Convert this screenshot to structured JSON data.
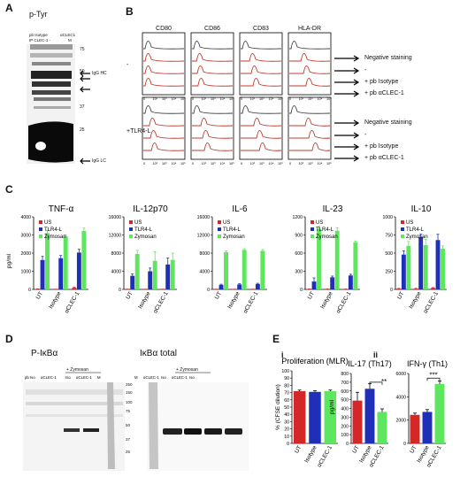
{
  "panelA": {
    "label": "A",
    "title": "p-Tyr",
    "lanes": [
      "pb Isotype",
      "αCLEC1"
    ],
    "lanes2": [
      "IP  CLEC-1 -",
      "M"
    ],
    "markers": [
      "75",
      "50",
      "37",
      "25"
    ],
    "annotations": [
      "IgG HC",
      "IgG LC"
    ]
  },
  "panelB": {
    "label": "B",
    "markers": [
      "CD80",
      "CD86",
      "CD83",
      "HLA-DR"
    ],
    "rows": [
      "-",
      "+TLR4-L"
    ],
    "legend": [
      "Negative staining",
      "-",
      "+ pb Isotype",
      "+ pb αCLEC-1"
    ],
    "ticks": [
      "0",
      "10²",
      "10³",
      "10⁴",
      "10⁵"
    ]
  },
  "panelC": {
    "label": "C",
    "ylabel": "pg/ml",
    "categories": [
      "UT",
      "Isotype",
      "αCLEC-1"
    ],
    "legend": [
      "US",
      "TLR4-L",
      "Zymosan"
    ],
    "colors": {
      "US": "#d62728",
      "TLR4-L": "#1f2fb8",
      "Zymosan": "#5ee65e"
    }
  },
  "panelD": {
    "label": "D",
    "titles": [
      "P-IκBα",
      "IκBα total"
    ],
    "zymosan": "+ Zymosan",
    "lanes": [
      "pb Iso",
      "αCLEC-1",
      "Iso",
      "αCLEC-1",
      "M"
    ],
    "markers_left": [
      "250",
      "150",
      "100",
      "75",
      "50",
      "37",
      "25"
    ],
    "markers_right": [
      "250",
      "150",
      "100",
      "75",
      "50",
      "37",
      "25"
    ]
  },
  "panelE": {
    "label": "E",
    "sub_i": "i",
    "sub_ii": "ii",
    "ylabel_i": "% (CFSE dilution)",
    "ylabel_ii": "pg/ml",
    "stars": [
      "**",
      "***"
    ],
    "categories": [
      "UT",
      "Isotype",
      "αCLEC-1"
    ]
  },
  "chart_data": [
    {
      "type": "bar",
      "title": "TNF-α",
      "categories": [
        "UT",
        "Isotype",
        "αCLEC-1"
      ],
      "ylim": [
        0,
        4000
      ],
      "yticks": [
        0,
        1000,
        2000,
        3000,
        4000
      ],
      "ylabel": "pg/ml",
      "series": [
        {
          "name": "US",
          "values": [
            20,
            10,
            90
          ],
          "err": [
            10,
            5,
            30
          ]
        },
        {
          "name": "TLR4-L",
          "values": [
            1620,
            1720,
            2030
          ],
          "err": [
            200,
            150,
            180
          ]
        },
        {
          "name": "Zymosan",
          "values": [
            3100,
            2920,
            3220
          ],
          "err": [
            150,
            80,
            160
          ]
        }
      ]
    },
    {
      "type": "bar",
      "title": "IL-12p70",
      "categories": [
        "UT",
        "Isotype",
        "αCLEC-1"
      ],
      "ylim": [
        0,
        16000
      ],
      "yticks": [
        0,
        4000,
        8000,
        12000,
        16000
      ],
      "series": [
        {
          "name": "US",
          "values": [
            50,
            50,
            50
          ],
          "err": [
            10,
            10,
            10
          ]
        },
        {
          "name": "TLR4-L",
          "values": [
            3000,
            4000,
            5500
          ],
          "err": [
            400,
            700,
            1400
          ]
        },
        {
          "name": "Zymosan",
          "values": [
            7800,
            6300,
            6500
          ],
          "err": [
            800,
            2000,
            1500
          ]
        }
      ]
    },
    {
      "type": "bar",
      "title": "IL-6",
      "categories": [
        "UT",
        "Isotype",
        "αCLEC-1"
      ],
      "ylim": [
        0,
        16000
      ],
      "yticks": [
        0,
        4000,
        8000,
        12000,
        16000
      ],
      "series": [
        {
          "name": "US",
          "values": [
            50,
            50,
            50
          ],
          "err": [
            10,
            10,
            10
          ]
        },
        {
          "name": "TLR4-L",
          "values": [
            1000,
            1100,
            1200
          ],
          "err": [
            150,
            150,
            150
          ]
        },
        {
          "name": "Zymosan",
          "values": [
            8200,
            8700,
            8500
          ],
          "err": [
            300,
            250,
            300
          ]
        }
      ]
    },
    {
      "type": "bar",
      "title": "IL-23",
      "categories": [
        "UT",
        "Isotype",
        "αCLEC-1"
      ],
      "ylim": [
        0,
        1200
      ],
      "yticks": [
        0,
        300,
        600,
        900,
        1200
      ],
      "series": [
        {
          "name": "US",
          "values": [
            5,
            5,
            5
          ],
          "err": [
            2,
            2,
            2
          ]
        },
        {
          "name": "TLR4-L",
          "values": [
            130,
            200,
            230
          ],
          "err": [
            60,
            20,
            20
          ]
        },
        {
          "name": "Zymosan",
          "values": [
            1000,
            970,
            780
          ],
          "err": [
            40,
            50,
            20
          ]
        }
      ]
    },
    {
      "type": "bar",
      "title": "IL-10",
      "categories": [
        "UT",
        "Isotype",
        "αCLEC-1"
      ],
      "ylim": [
        0,
        1000
      ],
      "yticks": [
        0,
        250,
        500,
        750,
        1000
      ],
      "series": [
        {
          "name": "US",
          "values": [
            10,
            10,
            20
          ],
          "err": [
            5,
            5,
            5
          ]
        },
        {
          "name": "TLR4-L",
          "values": [
            480,
            720,
            680
          ],
          "err": [
            50,
            40,
            80
          ]
        },
        {
          "name": "Zymosan",
          "values": [
            600,
            610,
            560
          ],
          "err": [
            60,
            80,
            40
          ]
        }
      ]
    },
    {
      "type": "bar",
      "title": "Proliferation (MLR)",
      "categories": [
        "UT",
        "Isotype",
        "αCLEC-1"
      ],
      "ylim": [
        0,
        100
      ],
      "yticks": [
        0,
        10,
        20,
        30,
        40,
        50,
        60,
        70,
        80,
        90,
        100
      ],
      "ylabel": "% (CFSE dilution)",
      "series": [
        {
          "values": [
            72,
            71,
            72
          ],
          "err": [
            1.5,
            1.5,
            1.5
          ]
        }
      ]
    },
    {
      "type": "bar",
      "title": "IL-17 (Th17)",
      "categories": [
        "UT",
        "Isotype",
        "αCLEC-1"
      ],
      "ylim": [
        0,
        800
      ],
      "yticks": [
        0,
        100,
        200,
        300,
        400,
        500,
        600,
        700,
        800
      ],
      "ylabel": "pg/ml",
      "series": [
        {
          "values": [
            490,
            625,
            360
          ],
          "err": [
            95,
            60,
            35
          ]
        }
      ]
    },
    {
      "type": "bar",
      "title": "IFN-γ (Th1)",
      "categories": [
        "UT",
        "Isotype",
        "αCLEC-1"
      ],
      "ylim": [
        0,
        6000
      ],
      "yticks": [
        0,
        2000,
        4000,
        6000
      ],
      "series": [
        {
          "values": [
            2450,
            2700,
            5100
          ],
          "err": [
            150,
            200,
            250
          ]
        }
      ]
    }
  ]
}
